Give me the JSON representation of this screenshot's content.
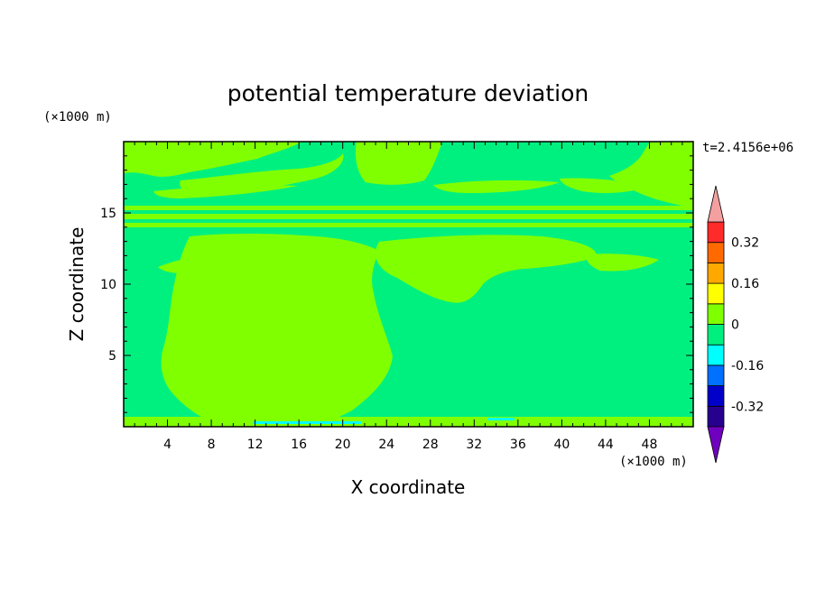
{
  "chart_data": {
    "type": "heatmap",
    "title": "potential temperature deviation",
    "xlabel": "X coordinate",
    "ylabel": "Z coordinate",
    "x_unit": "(×1000 m)",
    "y_unit": "(×1000 m)",
    "time_label": "t=2.4156e+06",
    "xlim": [
      0,
      52
    ],
    "ylim": [
      0,
      20
    ],
    "x_ticks": [
      4,
      8,
      12,
      16,
      20,
      24,
      28,
      32,
      36,
      40,
      44,
      48
    ],
    "y_ticks": [
      5,
      10,
      15
    ],
    "colorbar": {
      "levels": [
        -0.4,
        -0.32,
        -0.24,
        -0.16,
        -0.08,
        0,
        0.08,
        0.16,
        0.24,
        0.32,
        0.4
      ],
      "tick_labels": [
        "0.32",
        "0.16",
        "0",
        "-0.16",
        "-0.32"
      ],
      "tick_values": [
        0.32,
        0.16,
        0,
        -0.16,
        -0.32
      ],
      "colors": {
        "over": "#f4a0a0",
        "band_0.32_0.40": "#ff2a2a",
        "band_0.24_0.32": "#ff6a00",
        "band_0.16_0.24": "#ffa800",
        "band_0.08_0.16": "#ffff00",
        "band_0.00_0.08": "#80ff00",
        "band_-0.08_0.00": "#00f080",
        "band_-0.16_-0.08": "#00ffff",
        "band_-0.24_-0.16": "#0070ff",
        "band_-0.32_-0.24": "#0000c8",
        "band_-0.40_-0.32": "#280090",
        "under": "#7000c0"
      }
    },
    "field_colors": {
      "background_band": "#00f080",
      "positive_region": "#80ff00"
    }
  }
}
